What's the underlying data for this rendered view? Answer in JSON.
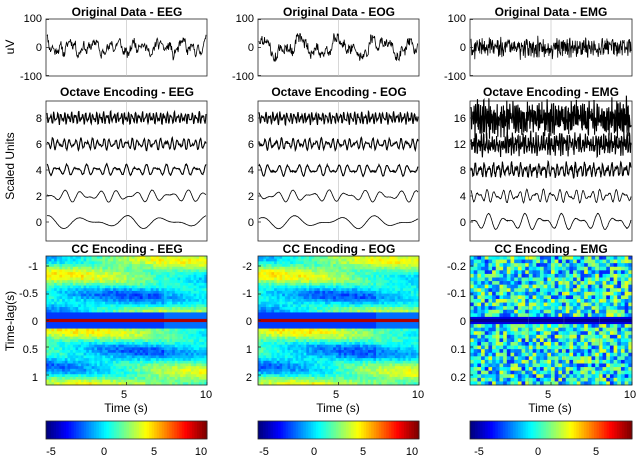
{
  "panels_row1": {
    "titles": [
      "Original Data - EEG",
      "Original Data - EOG",
      "Original Data - EMG"
    ],
    "ylabel": "uV",
    "yticks": [
      "100",
      "0",
      "-100"
    ]
  },
  "panels_row2": {
    "titles": [
      "Octave Encoding - EEG",
      "Octave Encoding - EOG",
      "Octave Encoding - EMG"
    ],
    "ylabel": "Scaled Units",
    "yticks_eeg": [
      "8",
      "6",
      "4",
      "2",
      "0"
    ],
    "yticks_eog": [
      "8",
      "6",
      "4",
      "2",
      "0"
    ],
    "yticks_emg": [
      "16",
      "12",
      "8",
      "4",
      "0"
    ]
  },
  "panels_row3": {
    "titles": [
      "CC Encoding - EEG",
      "CC Encoding - EOG",
      "CC Encoding - EMG"
    ],
    "ylabel": "Time-lag(s)",
    "xlabel": "Time (s)",
    "xticks": [
      "5",
      "10"
    ],
    "yticks_eeg": [
      "-1",
      "-0.5",
      "0",
      "0.5",
      "1"
    ],
    "yticks_eog": [
      "-2",
      "-1",
      "0",
      "1",
      "2"
    ],
    "yticks_emg": [
      "-0.2",
      "-0.1",
      "0",
      "0.1",
      "0.2"
    ]
  },
  "colorbars": {
    "eeg_ticks": [
      "-5",
      "0",
      "5",
      "10"
    ],
    "eog_ticks": [
      "-5",
      "0",
      "5",
      "10"
    ],
    "emg_ticks": [
      "-5",
      "0",
      "5"
    ]
  },
  "chart_data": [
    {
      "type": "line",
      "title": "Original Data - EEG",
      "xlabel": "",
      "ylabel": "uV",
      "xlim": [
        0,
        10
      ],
      "ylim": [
        -100,
        100
      ],
      "signal": "eeg"
    },
    {
      "type": "line",
      "title": "Original Data - EOG",
      "xlabel": "",
      "ylabel": "",
      "xlim": [
        0,
        10
      ],
      "ylim": [
        -100,
        100
      ],
      "signal": "eog"
    },
    {
      "type": "line",
      "title": "Original Data - EMG",
      "xlabel": "",
      "ylabel": "",
      "xlim": [
        0,
        10
      ],
      "ylim": [
        -100,
        100
      ],
      "signal": "emg"
    },
    {
      "type": "line",
      "title": "Octave Encoding - EEG",
      "xlabel": "",
      "ylabel": "Scaled Units",
      "xlim": [
        0,
        10
      ],
      "ylim": [
        -1,
        9
      ],
      "series_offsets": [
        0,
        2,
        4,
        6,
        8
      ]
    },
    {
      "type": "line",
      "title": "Octave Encoding - EOG",
      "xlabel": "",
      "ylabel": "",
      "xlim": [
        0,
        10
      ],
      "ylim": [
        -1,
        9
      ],
      "series_offsets": [
        0,
        2,
        4,
        6,
        8
      ]
    },
    {
      "type": "line",
      "title": "Octave Encoding - EMG",
      "xlabel": "",
      "ylabel": "",
      "xlim": [
        0,
        10
      ],
      "ylim": [
        -2,
        18
      ],
      "series_offsets": [
        0,
        4,
        8,
        12,
        16
      ]
    },
    {
      "type": "heatmap",
      "title": "CC Encoding - EEG",
      "xlabel": "Time (s)",
      "ylabel": "Time-lag(s)",
      "xlim": [
        0,
        10
      ],
      "ylim": [
        -1,
        1
      ],
      "clim": [
        -7,
        11
      ]
    },
    {
      "type": "heatmap",
      "title": "CC Encoding - EOG",
      "xlabel": "Time (s)",
      "ylabel": "",
      "xlim": [
        0,
        10
      ],
      "ylim": [
        -2,
        2
      ],
      "clim": [
        -7,
        11
      ]
    },
    {
      "type": "heatmap",
      "title": "CC Encoding - EMG",
      "xlabel": "Time (s)",
      "ylabel": "",
      "xlim": [
        0,
        10
      ],
      "ylim": [
        -0.2,
        0.2
      ],
      "clim": [
        -7,
        9
      ]
    }
  ]
}
